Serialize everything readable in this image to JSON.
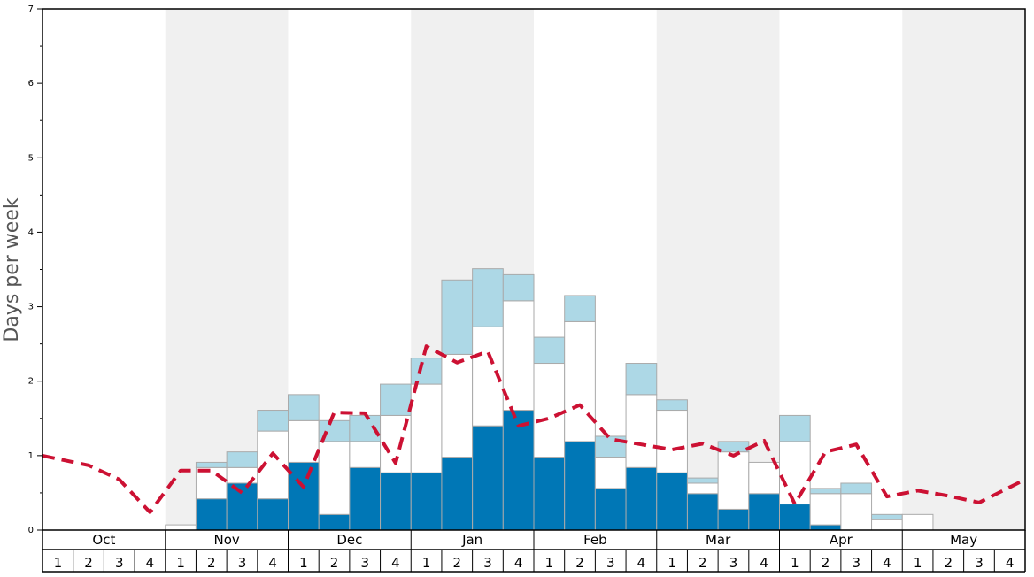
{
  "chart_data": {
    "type": "bar",
    "stacked": true,
    "ylabel": "Days per week",
    "ylim": [
      0,
      7
    ],
    "yticks": [
      "0",
      "1",
      "2",
      "3",
      "4",
      "5",
      "6",
      "7"
    ],
    "months": [
      "Oct",
      "Nov",
      "Dec",
      "Jan",
      "Feb",
      "Mar",
      "Apr",
      "May"
    ],
    "week_labels": [
      "1",
      "2",
      "3",
      "4"
    ],
    "shaded_months": [
      "Nov",
      "Jan",
      "Mar",
      "May"
    ],
    "categories": [
      "Oct 1",
      "Oct 2",
      "Oct 3",
      "Oct 4",
      "Nov 1",
      "Nov 2",
      "Nov 3",
      "Nov 4",
      "Dec 1",
      "Dec 2",
      "Dec 3",
      "Dec 4",
      "Jan 1",
      "Jan 2",
      "Jan 3",
      "Jan 4",
      "Feb 1",
      "Feb 2",
      "Feb 3",
      "Feb 4",
      "Mar 1",
      "Mar 2",
      "Mar 3",
      "Mar 4",
      "Apr 1",
      "Apr 2",
      "Apr 3",
      "Apr 4",
      "May 1",
      "May 2",
      "May 3",
      "May 4"
    ],
    "series": [
      {
        "color": "#0077b6",
        "values": [
          0,
          0,
          0,
          0,
          0,
          0.42,
          0.63,
          0.42,
          0.91,
          0.21,
          0.84,
          0.77,
          0.77,
          0.98,
          1.4,
          1.61,
          0.98,
          1.19,
          0.56,
          0.84,
          0.77,
          0.49,
          0.28,
          0.49,
          0.35,
          0.07,
          0,
          0,
          0,
          0,
          0,
          0
        ]
      },
      {
        "color": "#ffffff",
        "values": [
          0,
          0,
          0,
          0,
          0.07,
          0.42,
          0.21,
          0.91,
          0.56,
          0.98,
          0.35,
          0.77,
          1.19,
          1.38,
          1.33,
          1.47,
          1.26,
          1.61,
          0.42,
          0.98,
          0.84,
          0.14,
          0.77,
          0.42,
          0.84,
          0.42,
          0.49,
          0.14,
          0.21,
          0,
          0,
          0
        ]
      },
      {
        "color": "#add8e6",
        "values": [
          0,
          0,
          0,
          0,
          0,
          0.07,
          0.21,
          0.28,
          0.35,
          0.28,
          0.35,
          0.42,
          0.35,
          1.0,
          0.78,
          0.35,
          0.35,
          0.35,
          0.28,
          0.42,
          0.14,
          0.07,
          0.14,
          0,
          0.35,
          0.07,
          0.14,
          0.07,
          0,
          0,
          0,
          0
        ]
      }
    ],
    "line": {
      "style": "dashed",
      "color": "#cc1133",
      "values": [
        1.0,
        0.87,
        0.68,
        0.24,
        0.8,
        0.8,
        0.5,
        1.03,
        0.58,
        1.58,
        1.57,
        0.9,
        2.47,
        2.25,
        2.4,
        1.4,
        1.5,
        1.68,
        1.22,
        1.15,
        1.08,
        1.16,
        1.0,
        1.2,
        0.35,
        1.05,
        1.15,
        0.45,
        0.53,
        0.46,
        0.37,
        0.68
      ]
    },
    "grid": false,
    "legend": "none"
  }
}
